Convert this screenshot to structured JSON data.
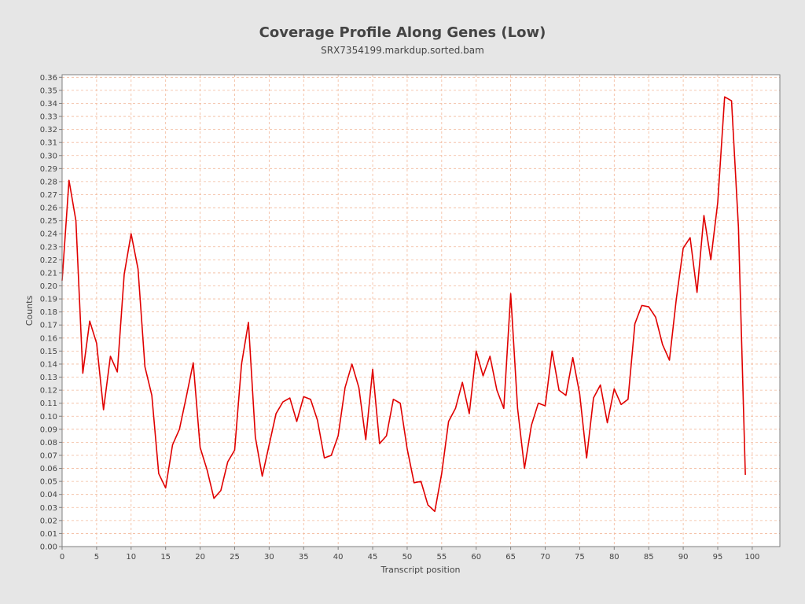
{
  "chart_data": {
    "type": "line",
    "title": "Coverage Profile Along Genes (Low)",
    "subtitle": "SRX7354199.markdup.sorted.bam",
    "xlabel": "Transcript position",
    "ylabel": "Counts",
    "xlim": [
      0,
      104
    ],
    "ylim": [
      0,
      0.362
    ],
    "xticks": [
      0,
      5,
      10,
      15,
      20,
      25,
      30,
      35,
      40,
      45,
      50,
      55,
      60,
      65,
      70,
      75,
      80,
      85,
      90,
      95,
      100
    ],
    "xtick_labels": [
      "0",
      "5",
      "10",
      "15",
      "20",
      "25",
      "30",
      "35",
      "40",
      "45",
      "50",
      "55",
      "60",
      "65",
      "70",
      "75",
      "80",
      "85",
      "90",
      "95",
      "100"
    ],
    "yticks": [
      0,
      0.01,
      0.02,
      0.03,
      0.04,
      0.05,
      0.06,
      0.07,
      0.08,
      0.09,
      0.1,
      0.11,
      0.12,
      0.13,
      0.14,
      0.15,
      0.16,
      0.17,
      0.18,
      0.19,
      0.2,
      0.21,
      0.22,
      0.23,
      0.24,
      0.25,
      0.26,
      0.27,
      0.28,
      0.29,
      0.3,
      0.31,
      0.32,
      0.33,
      0.34,
      0.35,
      0.36
    ],
    "ytick_labels": [
      "0.00",
      "0.01",
      "0.02",
      "0.03",
      "0.04",
      "0.05",
      "0.06",
      "0.07",
      "0.08",
      "0.09",
      "0.10",
      "0.11",
      "0.12",
      "0.13",
      "0.14",
      "0.15",
      "0.16",
      "0.17",
      "0.18",
      "0.19",
      "0.20",
      "0.21",
      "0.22",
      "0.23",
      "0.24",
      "0.25",
      "0.26",
      "0.27",
      "0.28",
      "0.29",
      "0.30",
      "0.31",
      "0.32",
      "0.33",
      "0.34",
      "0.35",
      "0.36"
    ],
    "grid": true,
    "legend": "none",
    "series": [
      {
        "color": "#e00000",
        "x": [
          0,
          1,
          2,
          3,
          4,
          5,
          6,
          7,
          8,
          9,
          10,
          11,
          12,
          13,
          14,
          15,
          16,
          17,
          18,
          19,
          20,
          21,
          22,
          23,
          24,
          25,
          26,
          27,
          28,
          29,
          30,
          31,
          32,
          33,
          34,
          35,
          36,
          37,
          38,
          39,
          40,
          41,
          42,
          43,
          44,
          45,
          46,
          47,
          48,
          49,
          50,
          51,
          52,
          53,
          54,
          55,
          56,
          57,
          58,
          59,
          60,
          61,
          62,
          63,
          64,
          65,
          66,
          67,
          68,
          69,
          70,
          71,
          72,
          73,
          74,
          75,
          76,
          77,
          78,
          79,
          80,
          81,
          82,
          83,
          84,
          85,
          86,
          87,
          88,
          89,
          90,
          91,
          92,
          93,
          94,
          95,
          96,
          97,
          98,
          99
        ],
        "y": [
          0.204,
          0.281,
          0.25,
          0.133,
          0.173,
          0.156,
          0.105,
          0.146,
          0.134,
          0.209,
          0.24,
          0.213,
          0.138,
          0.116,
          0.056,
          0.045,
          0.078,
          0.09,
          0.115,
          0.141,
          0.076,
          0.059,
          0.037,
          0.043,
          0.065,
          0.074,
          0.14,
          0.172,
          0.084,
          0.054,
          0.078,
          0.102,
          0.111,
          0.114,
          0.096,
          0.115,
          0.113,
          0.097,
          0.068,
          0.07,
          0.085,
          0.122,
          0.14,
          0.122,
          0.082,
          0.136,
          0.079,
          0.085,
          0.113,
          0.11,
          0.075,
          0.049,
          0.05,
          0.032,
          0.027,
          0.056,
          0.096,
          0.106,
          0.126,
          0.102,
          0.15,
          0.131,
          0.146,
          0.12,
          0.106,
          0.194,
          0.106,
          0.06,
          0.093,
          0.11,
          0.108,
          0.15,
          0.12,
          0.116,
          0.145,
          0.117,
          0.068,
          0.114,
          0.124,
          0.095,
          0.121,
          0.109,
          0.113,
          0.171,
          0.185,
          0.184,
          0.176,
          0.155,
          0.143,
          0.19,
          0.229,
          0.237,
          0.195,
          0.254,
          0.22,
          0.264,
          0.345,
          0.342,
          0.245,
          0.055
        ]
      }
    ]
  }
}
